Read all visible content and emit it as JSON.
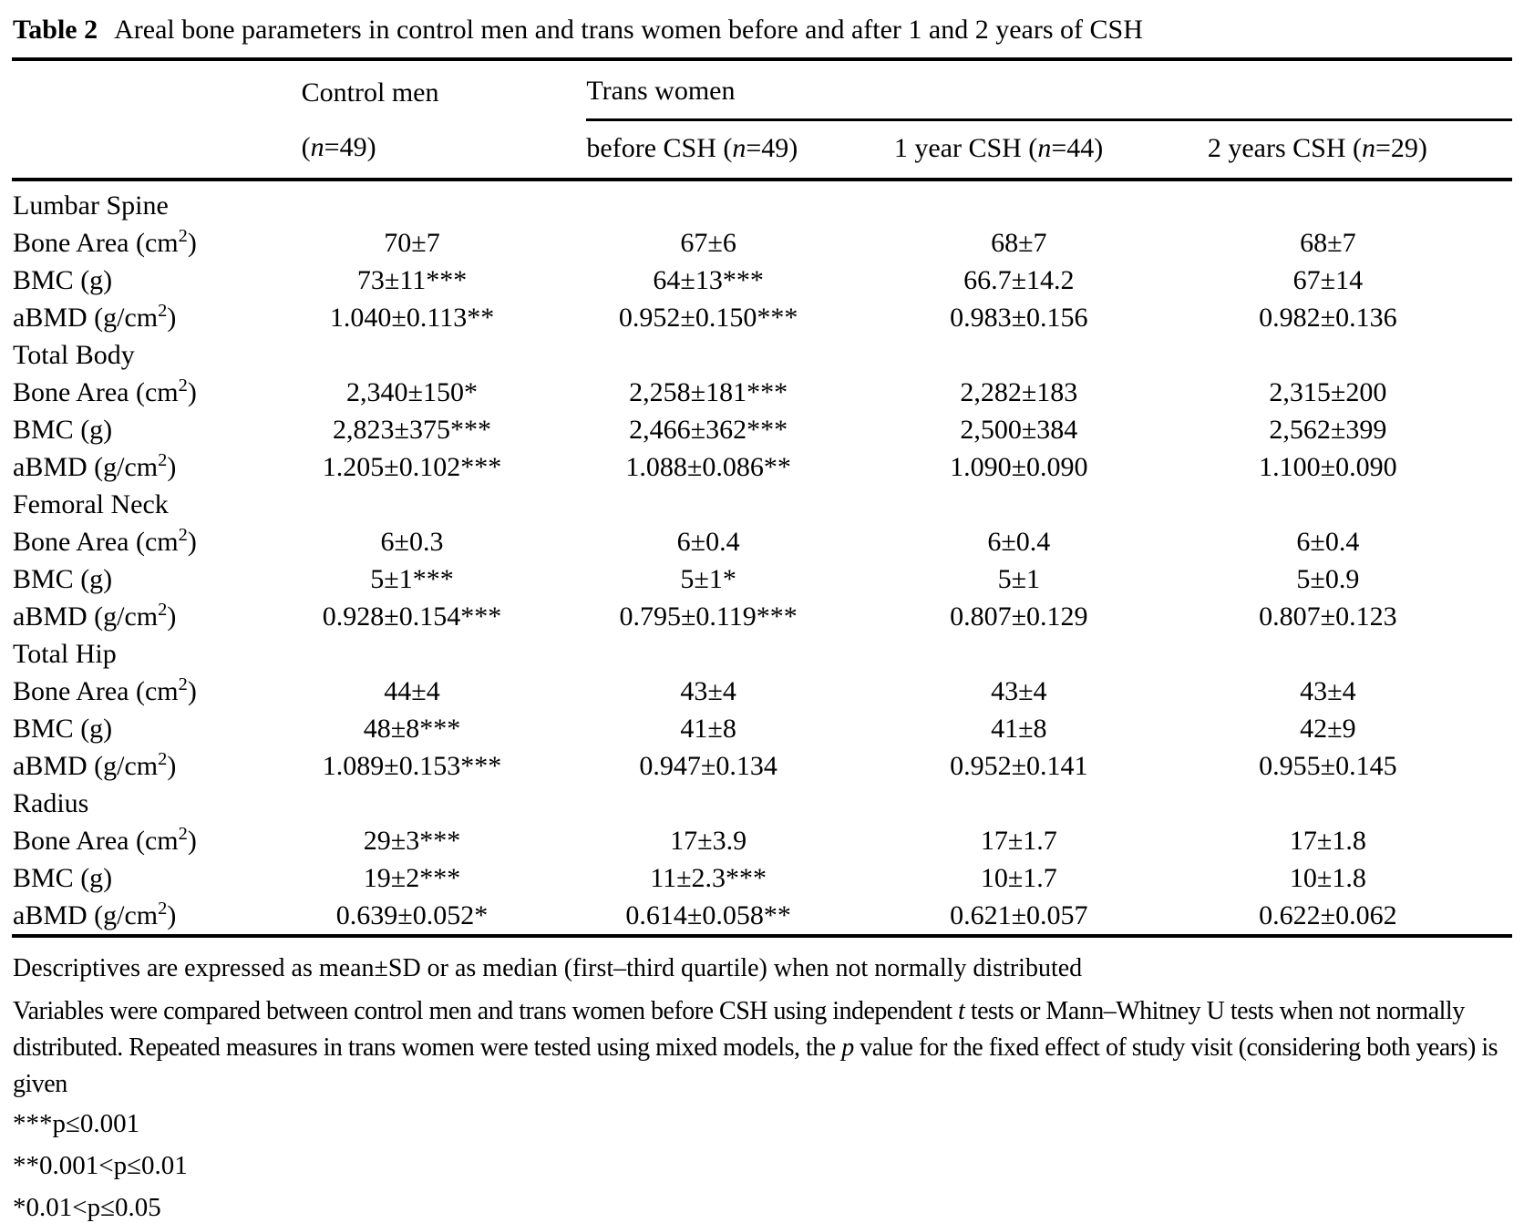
{
  "title": {
    "label": "Table 2",
    "caption": "Areal bone parameters in control men and trans women before and after 1 and 2 years of CSH"
  },
  "header": {
    "control_group": "Control men",
    "trans_group": "Trans women",
    "sub": [
      {
        "pre": "(",
        "n": "n",
        "post": "=49)"
      },
      {
        "pre": "before CSH (",
        "n": "n",
        "post": "=49)"
      },
      {
        "pre": "1 year CSH (",
        "n": "n",
        "post": "=44)"
      },
      {
        "pre": "2 years CSH (",
        "n": "n",
        "post": "=29)"
      }
    ]
  },
  "sections": [
    {
      "name": "Lumbar Spine",
      "rows": [
        {
          "label": {
            "pre": "Bone Area (cm",
            "sup": "2",
            "post": ")"
          },
          "values": [
            "70±7",
            "67±6",
            "68±7",
            "68±7"
          ]
        },
        {
          "label": {
            "pre": "BMC (g)",
            "sup": "",
            "post": ""
          },
          "values": [
            "73±11***",
            "64±13***",
            "66.7±14.2",
            "67±14"
          ]
        },
        {
          "label": {
            "pre": "aBMD (g/cm",
            "sup": "2",
            "post": ")"
          },
          "values": [
            "1.040±0.113**",
            "0.952±0.150***",
            "0.983±0.156",
            "0.982±0.136"
          ]
        }
      ]
    },
    {
      "name": "Total Body",
      "rows": [
        {
          "label": {
            "pre": "Bone Area (cm",
            "sup": "2",
            "post": ")"
          },
          "values": [
            "2,340±150*",
            "2,258±181***",
            "2,282±183",
            "2,315±200"
          ]
        },
        {
          "label": {
            "pre": "BMC (g)",
            "sup": "",
            "post": ""
          },
          "values": [
            "2,823±375***",
            "2,466±362***",
            "2,500±384",
            "2,562±399"
          ]
        },
        {
          "label": {
            "pre": "aBMD (g/cm",
            "sup": "2",
            "post": ")"
          },
          "values": [
            "1.205±0.102***",
            "1.088±0.086**",
            "1.090±0.090",
            "1.100±0.090"
          ]
        }
      ]
    },
    {
      "name": "Femoral Neck",
      "rows": [
        {
          "label": {
            "pre": "Bone Area (cm",
            "sup": "2",
            "post": ")"
          },
          "values": [
            "6±0.3",
            "6±0.4",
            "6±0.4",
            "6±0.4"
          ]
        },
        {
          "label": {
            "pre": "BMC (g)",
            "sup": "",
            "post": ""
          },
          "values": [
            "5±1***",
            "5±1*",
            "5±1",
            "5±0.9"
          ]
        },
        {
          "label": {
            "pre": "aBMD (g/cm",
            "sup": "2",
            "post": ")"
          },
          "values": [
            "0.928±0.154***",
            "0.795±0.119***",
            "0.807±0.129",
            "0.807±0.123"
          ]
        }
      ]
    },
    {
      "name": "Total Hip",
      "rows": [
        {
          "label": {
            "pre": "Bone Area (cm",
            "sup": "2",
            "post": ")"
          },
          "values": [
            "44±4",
            "43±4",
            "43±4",
            "43±4"
          ]
        },
        {
          "label": {
            "pre": "BMC (g)",
            "sup": "",
            "post": ""
          },
          "values": [
            "48±8***",
            "41±8",
            "41±8",
            "42±9"
          ]
        },
        {
          "label": {
            "pre": "aBMD (g/cm",
            "sup": "2",
            "post": ")"
          },
          "values": [
            "1.089±0.153***",
            "0.947±0.134",
            "0.952±0.141",
            "0.955±0.145"
          ]
        }
      ]
    },
    {
      "name": "Radius",
      "rows": [
        {
          "label": {
            "pre": "Bone Area (cm",
            "sup": "2",
            "post": ")"
          },
          "values": [
            "29±3***",
            "17±3.9",
            "17±1.7",
            "17±1.8"
          ]
        },
        {
          "label": {
            "pre": "BMC (g)",
            "sup": "",
            "post": ""
          },
          "values": [
            "19±2***",
            "11±2.3***",
            "10±1.7",
            "10±1.8"
          ]
        },
        {
          "label": {
            "pre": "aBMD (g/cm",
            "sup": "2",
            "post": ")"
          },
          "values": [
            "0.639±0.052*",
            "0.614±0.058**",
            "0.621±0.057",
            "0.622±0.062"
          ]
        }
      ]
    }
  ],
  "footnotes": {
    "descriptives": "Descriptives are expressed as mean±SD or as median (first–third quartile) when not normally distributed",
    "methods": {
      "p1": "Variables were compared between control men and trans women before CSH using independent ",
      "it1": "t",
      "p2": " tests or Mann–Whitney U tests when not normally distributed. Repeated measures in trans women were tested using mixed models, the ",
      "it2": "p",
      "p3": " value for the fixed effect of study visit (considering both years) is given"
    },
    "sig": [
      "***p≤0.001",
      "**0.001<p≤0.01",
      "*0.01<p≤0.05"
    ]
  }
}
